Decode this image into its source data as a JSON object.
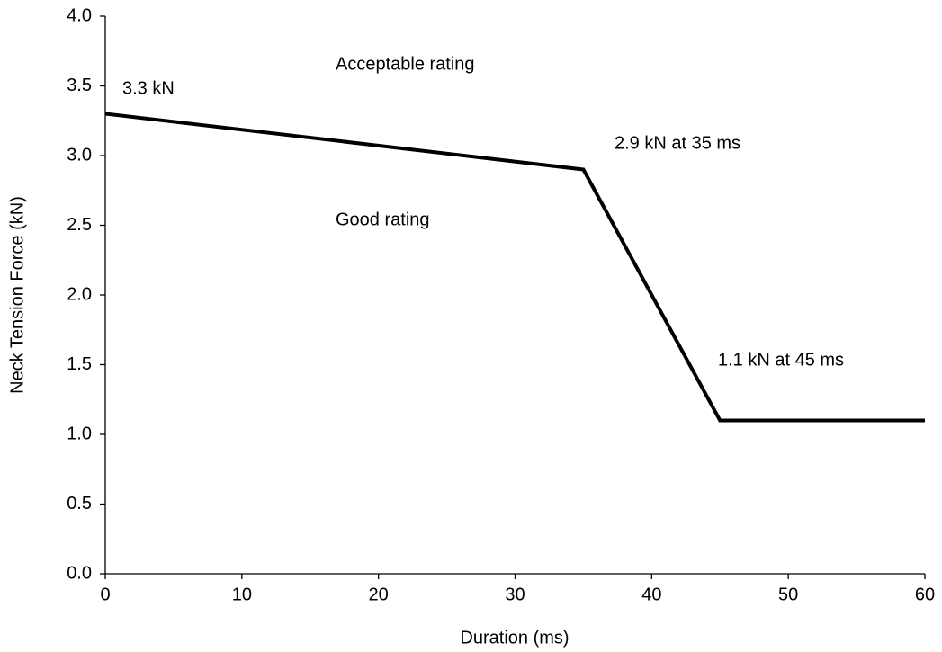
{
  "chart_data": {
    "type": "line",
    "x_label": "Duration (ms)",
    "y_label": "Neck Tension Force (kN)",
    "x": [
      0,
      35,
      45,
      60
    ],
    "values": [
      3.3,
      2.9,
      1.1,
      1.1
    ],
    "color": "#000000",
    "xlim": [
      0,
      60
    ],
    "xticks": [
      0,
      10,
      20,
      30,
      40,
      50,
      60
    ],
    "ylim": [
      0,
      4
    ],
    "yticks": [
      {
        "value": 0,
        "label": "0.0"
      },
      {
        "value": 0.5,
        "label": "0.5"
      },
      {
        "value": 1,
        "label": "1.0"
      },
      {
        "value": 1.5,
        "label": "1.5"
      },
      {
        "value": 2,
        "label": "2.0"
      },
      {
        "value": 2.5,
        "label": "2.5"
      },
      {
        "value": 3,
        "label": "3.0"
      },
      {
        "value": 3.5,
        "label": "3.5"
      },
      {
        "value": 4,
        "label": "4.0"
      }
    ],
    "grid": false,
    "annotations": [
      "3.3 kN",
      "Acceptable rating",
      "2.9 kN at 35 ms",
      "Good rating",
      "1.1 kN at 45 ms"
    ]
  }
}
